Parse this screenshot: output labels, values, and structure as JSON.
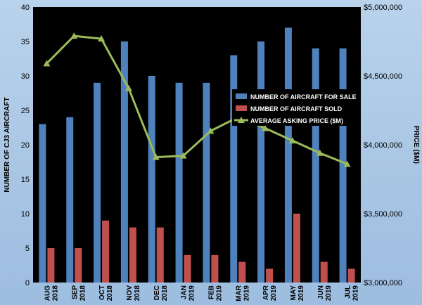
{
  "chart_data": {
    "type": "bar",
    "categories": [
      [
        "AUG",
        "2018"
      ],
      [
        "SEP",
        "2018"
      ],
      [
        "OCT",
        "2018"
      ],
      [
        "NOV",
        "2018"
      ],
      [
        "DEC",
        "2018"
      ],
      [
        "JAN",
        "2019"
      ],
      [
        "FEB",
        "2019"
      ],
      [
        "MAR",
        "2019"
      ],
      [
        "APR",
        "2019"
      ],
      [
        "MAY",
        "2019"
      ],
      [
        "JUN",
        "2019"
      ],
      [
        "JUL",
        "2019"
      ]
    ],
    "series": [
      {
        "name": "NUMBER OF AIRCRAFT FOR SALE",
        "type": "bar",
        "axis": "left",
        "color": "#4f81bd",
        "values": [
          23,
          24,
          29,
          35,
          30,
          29,
          29,
          33,
          35,
          37,
          34,
          34
        ]
      },
      {
        "name": "NUMBER OF AIRCRAFT SOLD",
        "type": "bar",
        "axis": "left",
        "color": "#c0504d",
        "values": [
          5,
          5,
          9,
          8,
          8,
          4,
          4,
          3,
          2,
          10,
          3,
          2
        ]
      },
      {
        "name": "AVERAGE ASKING PRICE ($M)",
        "type": "line",
        "axis": "right",
        "color": "#9bbb59",
        "marker": "triangle",
        "values": [
          4590000,
          4790000,
          4770000,
          4410000,
          3910000,
          3920000,
          4100000,
          4200000,
          4120000,
          4030000,
          3940000,
          3860000
        ]
      }
    ],
    "ylabel": "NUMBER OF CJ3 AIRCRAFT",
    "ylim": [
      0,
      40
    ],
    "yticks": [
      0,
      5,
      10,
      15,
      20,
      25,
      30,
      35,
      40
    ],
    "y2label": "PRICE ($M)",
    "y2lim": [
      3000000,
      5000000
    ],
    "y2ticks": [
      "$3,000,000",
      "$3,500,000",
      "$4,000,000",
      "$4,500,000",
      "$5,000,000"
    ],
    "y2tickValues": [
      3000000,
      3500000,
      4000000,
      4500000,
      5000000
    ],
    "legend_position": "right-middle",
    "plot_background": "#000000",
    "grid": false
  }
}
